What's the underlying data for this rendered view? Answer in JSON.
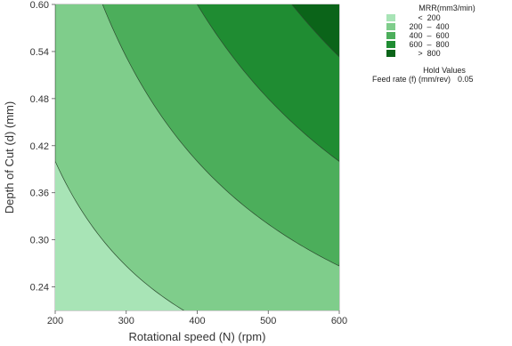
{
  "chart_data": {
    "type": "contour",
    "title": "",
    "xlabel": "Rotational speed (N) (rpm)",
    "ylabel": "Depth of Cut (d) (mm)",
    "xlim": [
      200,
      600
    ],
    "ylim": [
      0.21,
      0.6
    ],
    "x_ticks": [
      "200",
      "300",
      "400",
      "500",
      "600"
    ],
    "y_ticks": [
      "0.24",
      "0.30",
      "0.36",
      "0.42",
      "0.48",
      "0.54",
      "0.60"
    ],
    "response": "MRR(mm3/min)",
    "hold_feed_rate": 0.05,
    "levels": [
      200,
      400,
      600,
      800
    ],
    "legend": {
      "title": "MRR(mm3/min)",
      "entries": [
        {
          "label": "<  200",
          "color": "#a8e4b6"
        },
        {
          "label": "200  –  400",
          "color": "#7fcd8b"
        },
        {
          "label": "400  –  600",
          "color": "#4cae5b"
        },
        {
          "label": "600  –  800",
          "color": "#1f8c32"
        },
        {
          "label": ">  800",
          "color": "#0b6419"
        }
      ]
    },
    "hold_values": {
      "title": "Hold Values",
      "label": "Feed rate (f) (mm/rev)",
      "value": "0.05"
    }
  }
}
